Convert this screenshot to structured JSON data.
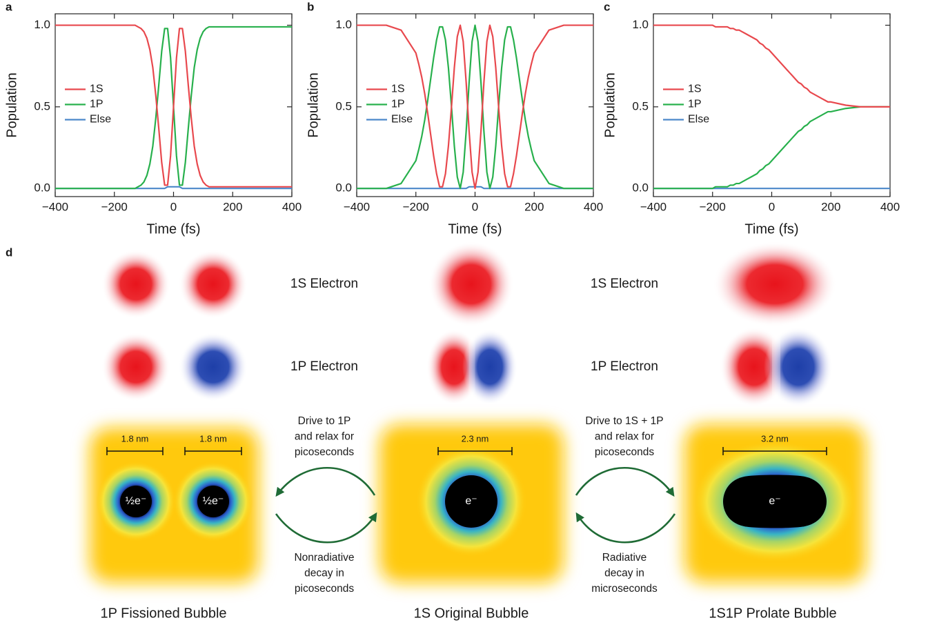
{
  "chart_data": [
    {
      "type": "line",
      "panel_label": "a",
      "xlabel": "Time (fs)",
      "ylabel": "Population",
      "legend": "center left",
      "x": [
        -400,
        -300,
        -250,
        -200,
        -190,
        -180,
        -170,
        -160,
        -150,
        -140,
        -130,
        -120,
        -110,
        -100,
        -90,
        -80,
        -70,
        -60,
        -50,
        -40,
        -30,
        -20,
        -10,
        0,
        10,
        20,
        30,
        40,
        50,
        60,
        70,
        80,
        90,
        100,
        110,
        120,
        130,
        140,
        150,
        160,
        170,
        180,
        190,
        200,
        250,
        300,
        400
      ],
      "series": [
        {
          "name": "1S",
          "color": "#e8484d",
          "values": [
            1,
            1,
            1,
            1,
            1,
            1,
            1,
            1,
            1,
            1,
            1,
            0.99,
            0.98,
            0.96,
            0.92,
            0.85,
            0.74,
            0.57,
            0.37,
            0.16,
            0.02,
            0.02,
            0.2,
            0.5,
            0.8,
            0.98,
            0.98,
            0.84,
            0.63,
            0.43,
            0.26,
            0.15,
            0.08,
            0.04,
            0.02,
            0.01,
            0.01,
            0.01,
            0.01,
            0.01,
            0.01,
            0.01,
            0.01,
            0.01,
            0.01,
            0.01,
            0.01
          ]
        },
        {
          "name": "1P",
          "color": "#27b04c",
          "values": [
            0,
            0,
            0,
            0,
            0,
            0,
            0,
            0,
            0,
            0,
            0,
            0.01,
            0.02,
            0.04,
            0.08,
            0.15,
            0.26,
            0.43,
            0.63,
            0.84,
            0.98,
            0.98,
            0.8,
            0.5,
            0.2,
            0.02,
            0.02,
            0.16,
            0.37,
            0.57,
            0.74,
            0.85,
            0.92,
            0.96,
            0.98,
            0.99,
            0.99,
            0.99,
            0.99,
            0.99,
            0.99,
            0.99,
            0.99,
            0.99,
            0.99,
            0.99,
            0.99
          ]
        },
        {
          "name": "Else",
          "color": "#4a87c9",
          "values": [
            0,
            0,
            0,
            0,
            0,
            0,
            0,
            0,
            0,
            0,
            0,
            0,
            0,
            0,
            0,
            0,
            0,
            0,
            0,
            0,
            0,
            0.01,
            0.01,
            0.01,
            0.01,
            0.01,
            0,
            0,
            0,
            0,
            0,
            0,
            0,
            0,
            0,
            0,
            0,
            0,
            0,
            0,
            0,
            0,
            0,
            0,
            0,
            0,
            0
          ]
        }
      ],
      "xlim": [
        -400,
        400
      ],
      "ylim": [
        -0.05,
        1.07
      ],
      "xticks": [
        {
          "value": -400,
          "label": "−400"
        },
        {
          "value": -200,
          "label": "−200"
        },
        0,
        200,
        400
      ],
      "yticks": [
        {
          "value": 0,
          "label": "0.0"
        },
        {
          "value": 0.5,
          "label": "0.5"
        },
        {
          "value": 1,
          "label": "1.0"
        }
      ]
    },
    {
      "type": "line",
      "panel_label": "b",
      "xlabel": "Time (fs)",
      "ylabel": "Population",
      "legend": "center left",
      "x": [
        -400,
        -300,
        -250,
        -200,
        -190,
        -180,
        -170,
        -160,
        -150,
        -140,
        -130,
        -120,
        -110,
        -100,
        -90,
        -80,
        -70,
        -60,
        -50,
        -40,
        -30,
        -20,
        -10,
        0,
        10,
        20,
        30,
        40,
        50,
        60,
        70,
        80,
        90,
        100,
        110,
        120,
        130,
        140,
        150,
        160,
        170,
        180,
        190,
        200,
        250,
        300,
        400
      ],
      "series": [
        {
          "name": "1S",
          "color": "#e8484d",
          "values": [
            1,
            1,
            0.97,
            0.83,
            0.76,
            0.68,
            0.58,
            0.46,
            0.33,
            0.2,
            0.09,
            0.01,
            0.01,
            0.09,
            0.26,
            0.49,
            0.74,
            0.93,
            1,
            0.9,
            0.65,
            0.35,
            0.1,
            0,
            0.1,
            0.35,
            0.65,
            0.9,
            1,
            0.93,
            0.74,
            0.49,
            0.26,
            0.09,
            0.01,
            0.01,
            0.09,
            0.2,
            0.33,
            0.46,
            0.58,
            0.68,
            0.76,
            0.83,
            0.97,
            1,
            1
          ]
        },
        {
          "name": "1P",
          "color": "#27b04c",
          "values": [
            0,
            0,
            0.03,
            0.17,
            0.24,
            0.32,
            0.42,
            0.54,
            0.67,
            0.8,
            0.91,
            0.99,
            0.99,
            0.91,
            0.74,
            0.51,
            0.26,
            0.07,
            0,
            0.1,
            0.35,
            0.65,
            0.9,
            1,
            0.9,
            0.65,
            0.35,
            0.1,
            0,
            0.07,
            0.26,
            0.51,
            0.74,
            0.91,
            0.99,
            0.99,
            0.91,
            0.8,
            0.67,
            0.54,
            0.42,
            0.32,
            0.24,
            0.17,
            0.03,
            0,
            0
          ]
        },
        {
          "name": "Else",
          "color": "#4a87c9",
          "values": [
            0,
            0,
            0,
            0,
            0,
            0,
            0,
            0,
            0,
            0,
            0,
            0,
            0,
            0,
            0,
            0,
            0,
            0,
            0,
            0,
            0,
            0.01,
            0.01,
            0.01,
            0.01,
            0.01,
            0,
            0,
            0,
            0,
            0,
            0,
            0,
            0,
            0,
            0,
            0,
            0,
            0,
            0,
            0,
            0,
            0,
            0,
            0,
            0,
            0
          ]
        }
      ],
      "xlim": [
        -400,
        400
      ],
      "ylim": [
        -0.05,
        1.07
      ],
      "xticks": [
        {
          "value": -400,
          "label": "−400"
        },
        {
          "value": -200,
          "label": "−200"
        },
        0,
        200,
        400
      ],
      "yticks": [
        {
          "value": 0,
          "label": "0.0"
        },
        {
          "value": 0.5,
          "label": "0.5"
        },
        {
          "value": 1,
          "label": "1.0"
        }
      ]
    },
    {
      "type": "line",
      "panel_label": "c",
      "xlabel": "Time (fs)",
      "ylabel": "Population",
      "legend": "center left",
      "x": [
        -400,
        -300,
        -250,
        -200,
        -190,
        -180,
        -170,
        -160,
        -150,
        -140,
        -130,
        -120,
        -110,
        -100,
        -90,
        -80,
        -70,
        -60,
        -50,
        -40,
        -30,
        -20,
        -10,
        0,
        10,
        20,
        30,
        40,
        50,
        60,
        70,
        80,
        90,
        100,
        110,
        120,
        130,
        140,
        150,
        160,
        170,
        180,
        190,
        200,
        250,
        300,
        400
      ],
      "series": [
        {
          "name": "1S",
          "color": "#e8484d",
          "values": [
            1,
            1,
            1,
            1,
            0.99,
            0.99,
            0.99,
            0.99,
            0.99,
            0.98,
            0.98,
            0.97,
            0.97,
            0.96,
            0.95,
            0.94,
            0.93,
            0.92,
            0.91,
            0.89,
            0.88,
            0.86,
            0.85,
            0.83,
            0.81,
            0.79,
            0.77,
            0.75,
            0.73,
            0.71,
            0.69,
            0.67,
            0.65,
            0.64,
            0.62,
            0.61,
            0.59,
            0.58,
            0.57,
            0.56,
            0.55,
            0.54,
            0.53,
            0.53,
            0.51,
            0.5,
            0.5
          ]
        },
        {
          "name": "1P",
          "color": "#27b04c",
          "values": [
            0,
            0,
            0,
            0,
            0.01,
            0.01,
            0.01,
            0.01,
            0.01,
            0.02,
            0.02,
            0.03,
            0.03,
            0.04,
            0.05,
            0.06,
            0.07,
            0.08,
            0.09,
            0.11,
            0.12,
            0.14,
            0.15,
            0.17,
            0.19,
            0.21,
            0.23,
            0.25,
            0.27,
            0.29,
            0.31,
            0.33,
            0.35,
            0.36,
            0.38,
            0.39,
            0.41,
            0.42,
            0.43,
            0.44,
            0.45,
            0.46,
            0.47,
            0.47,
            0.49,
            0.5,
            0.5
          ]
        },
        {
          "name": "Else",
          "color": "#4a87c9",
          "values": [
            0,
            0,
            0,
            0,
            0,
            0,
            0,
            0,
            0,
            0,
            0,
            0,
            0,
            0,
            0,
            0,
            0,
            0,
            0,
            0,
            0,
            0,
            0,
            0,
            0,
            0,
            0,
            0,
            0,
            0,
            0,
            0,
            0,
            0,
            0,
            0,
            0,
            0,
            0,
            0,
            0,
            0,
            0,
            0,
            0,
            0,
            0
          ]
        }
      ],
      "xlim": [
        -400,
        400
      ],
      "ylim": [
        -0.05,
        1.07
      ],
      "xticks": [
        {
          "value": -400,
          "label": "−400"
        },
        {
          "value": -200,
          "label": "−200"
        },
        0,
        200,
        400
      ],
      "yticks": [
        {
          "value": 0,
          "label": "0.0"
        },
        {
          "value": 0.5,
          "label": "0.5"
        },
        {
          "value": 1,
          "label": "1.0"
        }
      ]
    }
  ],
  "diagram": {
    "panel_label": "d",
    "row_labels": [
      "1S Electron",
      "1P Electron",
      "1S Electron",
      "1P Electron"
    ],
    "arrow_texts": [
      [
        "Drive to 1P",
        "and relax for",
        "picoseconds"
      ],
      [
        "Nonradiative",
        "decay in",
        "picoseconds"
      ],
      [
        "Drive to 1S + 1P",
        "and relax for",
        "picoseconds"
      ],
      [
        "Radiative",
        "decay in",
        "microseconds"
      ]
    ],
    "scale_labels": [
      "1.8 nm",
      "1.8 nm",
      "2.3 nm",
      "3.2 nm"
    ],
    "bubble_labels": [
      "½e⁻",
      "½e⁻",
      "e⁻",
      "e⁻"
    ],
    "captions": [
      "1P Fissioned Bubble",
      "1S Original Bubble",
      "1S1P Prolate Bubble"
    ]
  }
}
